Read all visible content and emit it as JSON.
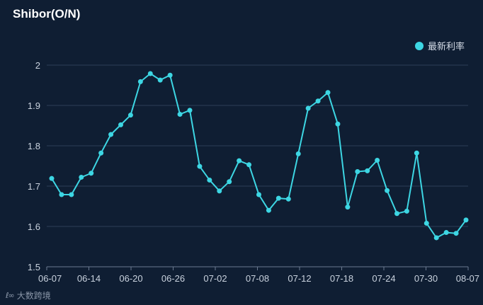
{
  "title": "Shibor(O/N)",
  "legend": {
    "label": "最新利率",
    "color": "#3dd6e3"
  },
  "watermark": {
    "icon": "logo-icon",
    "text": "大数跨境"
  },
  "chart_data": {
    "type": "line",
    "title": "Shibor(O/N)",
    "xlabel": "",
    "ylabel": "",
    "ylim": [
      1.5,
      2.0
    ],
    "yticks": [
      1.5,
      1.6,
      1.7,
      1.8,
      1.9,
      2
    ],
    "grid": true,
    "legend_position": "top-right",
    "line_color": "#3dd6e3",
    "x_tick_labels": [
      "06-07",
      "06-14",
      "06-20",
      "06-26",
      "07-02",
      "07-08",
      "07-12",
      "07-18",
      "07-24",
      "07-30",
      "08-07"
    ],
    "series": [
      {
        "name": "最新利率",
        "values": [
          1.719,
          1.679,
          1.679,
          1.722,
          1.732,
          1.782,
          1.828,
          1.852,
          1.876,
          1.959,
          1.979,
          1.963,
          1.975,
          1.878,
          1.888,
          1.749,
          1.715,
          1.688,
          1.711,
          1.763,
          1.753,
          1.679,
          1.64,
          1.67,
          1.668,
          1.78,
          1.893,
          1.911,
          1.932,
          1.854,
          1.648,
          1.736,
          1.738,
          1.764,
          1.689,
          1.632,
          1.638,
          1.782,
          1.608,
          1.572,
          1.585,
          1.583,
          1.616
        ]
      }
    ]
  }
}
